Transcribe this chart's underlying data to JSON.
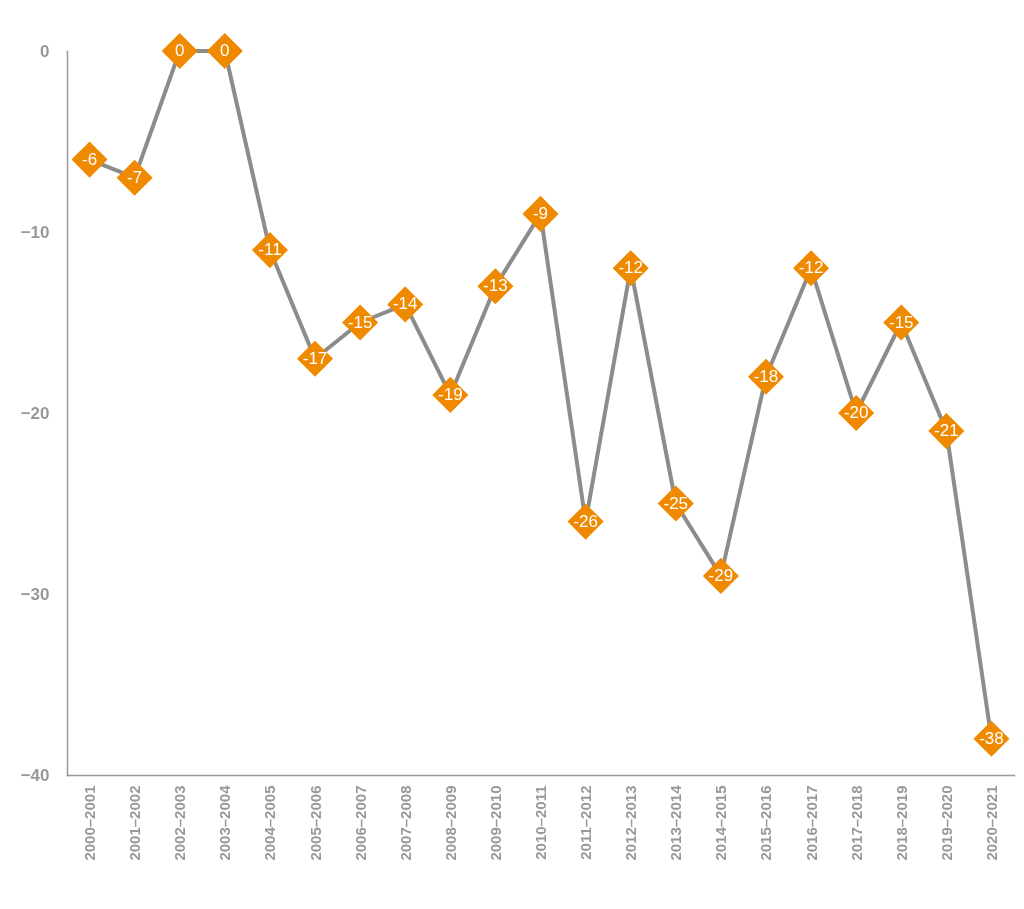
{
  "chart_data": {
    "type": "line",
    "categories": [
      "2000–2001",
      "2001–2002",
      "2002–2003",
      "2003–2004",
      "2004–2005",
      "2005–2006",
      "2006–2007",
      "2007–2008",
      "2008–2009",
      "2009–2010",
      "2010–2011",
      "2011–2012",
      "2012–2013",
      "2013–2014",
      "2014–2015",
      "2015–2016",
      "2016–2017",
      "2017–2018",
      "2018–2019",
      "2019–2020",
      "2020–2021"
    ],
    "values": [
      -6,
      -7,
      0,
      0,
      -11,
      -17,
      -15,
      -14,
      -19,
      -13,
      -9,
      -26,
      -12,
      -25,
      -29,
      -18,
      -12,
      -20,
      -15,
      -21,
      -38
    ],
    "color": "#ef8a00",
    "marker": "diamond",
    "data_labels": true,
    "grid": false,
    "ylim": [
      -40,
      0
    ],
    "yticks": [
      0,
      -10,
      -20,
      -30,
      -40
    ]
  }
}
